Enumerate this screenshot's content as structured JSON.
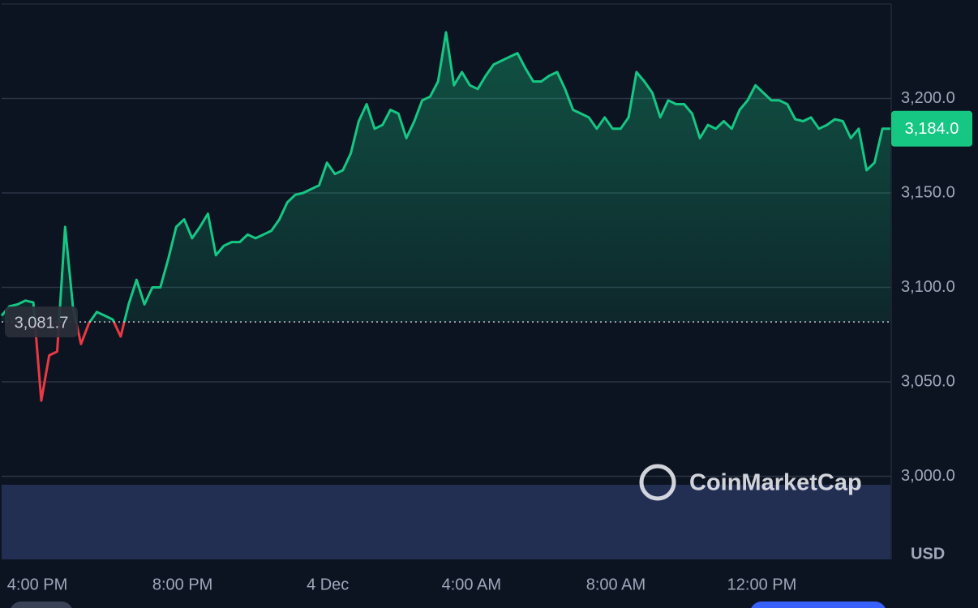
{
  "chart_data": {
    "type": "line",
    "values": [
      3085,
      3090,
      3091,
      3093,
      3092,
      3040,
      3064,
      3066,
      3132,
      3089,
      3070,
      3081,
      3087,
      3085,
      3083,
      3074,
      3091,
      3104,
      3091,
      3100,
      3100,
      3115,
      3132,
      3136,
      3126,
      3132,
      3139,
      3117,
      3122,
      3124,
      3124,
      3128,
      3126,
      3128,
      3130,
      3136,
      3145,
      3149,
      3150,
      3152,
      3154,
      3166,
      3160,
      3162,
      3171,
      3188,
      3197,
      3184,
      3186,
      3194,
      3192,
      3179,
      3188,
      3199,
      3201,
      3209,
      3235,
      3207,
      3214,
      3207,
      3205,
      3212,
      3218,
      3220,
      3222,
      3224,
      3216,
      3209,
      3209,
      3212,
      3214,
      3205,
      3194,
      3192,
      3190,
      3184,
      3190,
      3184,
      3184,
      3190,
      3214,
      3209,
      3203,
      3190,
      3199,
      3197,
      3197,
      3192,
      3179,
      3186,
      3184,
      3188,
      3184,
      3194,
      3199,
      3207,
      3203,
      3199,
      3199,
      3197,
      3189,
      3188,
      3190,
      3184,
      3186,
      3189,
      3188,
      3179,
      3184,
      3162,
      3166,
      3184,
      3184
    ],
    "last_value_label": "3,184.0",
    "reference_value": 3081.7,
    "reference_label": "3,081.7",
    "up_color": "#16c784",
    "down_color": "#ea3943",
    "xlim": [
      0,
      112
    ],
    "xticks": [
      {
        "value": 4.5,
        "label": "4:00 PM"
      },
      {
        "value": 22.8,
        "label": "8:00 PM"
      },
      {
        "value": 41.1,
        "label": "4 Dec"
      },
      {
        "value": 59.2,
        "label": "4:00 AM"
      },
      {
        "value": 77.4,
        "label": "8:00 AM"
      },
      {
        "value": 95.8,
        "label": "12:00 PM"
      }
    ],
    "ylim": [
      2956,
      3250
    ],
    "yticks": [
      {
        "value": 3000,
        "label": "3,000.0"
      },
      {
        "value": 3050,
        "label": "3,050.0"
      },
      {
        "value": 3100,
        "label": "3,100.0"
      },
      {
        "value": 3150,
        "label": "3,150.0"
      },
      {
        "value": 3200,
        "label": "3,200.0"
      }
    ],
    "grid": true,
    "y_unit": "USD",
    "watermark": "CoinMarketCap"
  }
}
